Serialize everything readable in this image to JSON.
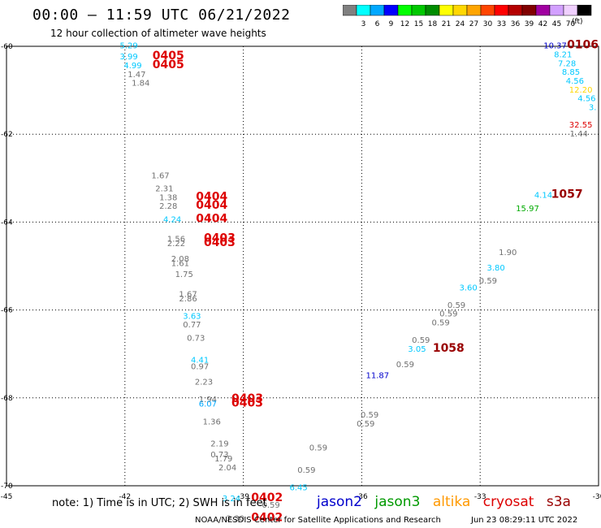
{
  "header": {
    "title": "00:00 – 11:59 UTC 06/21/2022",
    "subtitle": "12 hour collection of altimeter wave heights"
  },
  "colorbar": {
    "unit_label": "(ft)",
    "ticks": [
      "3",
      "6",
      "9",
      "12",
      "15",
      "18",
      "21",
      "24",
      "27",
      "30",
      "33",
      "36",
      "39",
      "42",
      "45",
      "70"
    ],
    "colors": [
      "#808080",
      "#00ffff",
      "#00a8ff",
      "#0000ff",
      "#00ff00",
      "#00c800",
      "#008c00",
      "#ffff00",
      "#ffd700",
      "#ffa500",
      "#ff4500",
      "#ff0000",
      "#b40000",
      "#800000",
      "#a000a0",
      "#d2a0ff",
      "#f0d0ff",
      "#000000"
    ]
  },
  "footer": {
    "note": "note: 1) Time is in UTC; 2) SWH is in feet",
    "credit": "NOAA/NESDIS Center for Satellite Applications and Research",
    "timestamp": "Jun 23 08:29:11 UTC 2022"
  },
  "legend": [
    {
      "name": "jason2",
      "color": "#0000cc"
    },
    {
      "name": "jason3",
      "color": "#009900"
    },
    {
      "name": "altika",
      "color": "#ff9900"
    },
    {
      "name": "cryosat",
      "color": "#dd0000"
    },
    {
      "name": "s3a",
      "color": "#990000"
    }
  ],
  "chart_data": {
    "type": "scatter",
    "title": "00:00 – 11:59 UTC 06/21/2022",
    "subtitle": "12 hour collection of altimeter wave heights",
    "xlim": [
      -45,
      -30
    ],
    "ylim": [
      -70,
      -60
    ],
    "x_ticks": [
      -45,
      -42,
      -39,
      -36,
      -33,
      -30
    ],
    "y_ticks": [
      -70,
      -68,
      -66,
      -64,
      -62,
      -60
    ],
    "x_tick_labels": [
      "-45",
      "-42",
      "-39",
      "-36",
      "-33",
      "-30"
    ],
    "y_tick_labels": [
      "-70",
      "-68",
      "-66",
      "-64",
      "-62",
      "-60"
    ],
    "grid": true,
    "labels": [
      {
        "text": "5.29",
        "x": -41.9,
        "y": -60.05,
        "color": "#00c8ff"
      },
      {
        "text": "3.99",
        "x": -41.9,
        "y": -60.3,
        "color": "#00c8ff"
      },
      {
        "text": "0405",
        "x": -40.9,
        "y": -60.3,
        "color": "#dd0000"
      },
      {
        "text": "4.99",
        "x": -41.8,
        "y": -60.5,
        "color": "#00c8ff"
      },
      {
        "text": "0405",
        "x": -40.9,
        "y": -60.5,
        "color": "#dd0000"
      },
      {
        "text": "1.47",
        "x": -41.7,
        "y": -60.7,
        "color": "#707070"
      },
      {
        "text": "1.84",
        "x": -41.6,
        "y": -60.9,
        "color": "#707070"
      },
      {
        "text": "1.67",
        "x": -41.1,
        "y": -63.0,
        "color": "#707070"
      },
      {
        "text": "2.31",
        "x": -41.0,
        "y": -63.3,
        "color": "#707070"
      },
      {
        "text": "1.38",
        "x": -40.9,
        "y": -63.5,
        "color": "#707070"
      },
      {
        "text": "0404",
        "x": -39.8,
        "y": -63.5,
        "color": "#dd0000"
      },
      {
        "text": "2.28",
        "x": -40.9,
        "y": -63.7,
        "color": "#707070"
      },
      {
        "text": "0404",
        "x": -39.8,
        "y": -63.7,
        "color": "#dd0000"
      },
      {
        "text": "4.24",
        "x": -40.8,
        "y": -64.0,
        "color": "#00c8ff"
      },
      {
        "text": "0404",
        "x": -39.8,
        "y": -64.0,
        "color": "#dd0000"
      },
      {
        "text": "1.56",
        "x": -40.7,
        "y": -64.45,
        "color": "#707070"
      },
      {
        "text": "0403",
        "x": -39.6,
        "y": -64.45,
        "color": "#dd0000"
      },
      {
        "text": "2.22",
        "x": -40.7,
        "y": -64.55,
        "color": "#707070"
      },
      {
        "text": "0403",
        "x": -39.6,
        "y": -64.55,
        "color": "#dd0000"
      },
      {
        "text": "2.08",
        "x": -40.6,
        "y": -64.9,
        "color": "#707070"
      },
      {
        "text": "1.61",
        "x": -40.6,
        "y": -65.0,
        "color": "#707070"
      },
      {
        "text": "1.75",
        "x": -40.5,
        "y": -65.25,
        "color": "#707070"
      },
      {
        "text": "1.67",
        "x": -40.4,
        "y": -65.7,
        "color": "#707070"
      },
      {
        "text": "2.86",
        "x": -40.4,
        "y": -65.8,
        "color": "#707070"
      },
      {
        "text": "3.63",
        "x": -40.3,
        "y": -66.2,
        "color": "#00c8ff"
      },
      {
        "text": "0.77",
        "x": -40.3,
        "y": -66.4,
        "color": "#707070"
      },
      {
        "text": "0.73",
        "x": -40.2,
        "y": -66.7,
        "color": "#707070"
      },
      {
        "text": "4.41",
        "x": -40.1,
        "y": -67.2,
        "color": "#00c8ff"
      },
      {
        "text": "0.97",
        "x": -40.1,
        "y": -67.35,
        "color": "#707070"
      },
      {
        "text": "2.23",
        "x": -40.0,
        "y": -67.7,
        "color": "#707070"
      },
      {
        "text": "1.94",
        "x": -39.9,
        "y": -68.1,
        "color": "#707070"
      },
      {
        "text": "0403",
        "x": -38.9,
        "y": -68.1,
        "color": "#dd0000"
      },
      {
        "text": "6.07",
        "x": -39.9,
        "y": -68.2,
        "color": "#00a8ff"
      },
      {
        "text": "0403",
        "x": -38.9,
        "y": -68.2,
        "color": "#dd0000"
      },
      {
        "text": "1.36",
        "x": -39.8,
        "y": -68.6,
        "color": "#707070"
      },
      {
        "text": "2.19",
        "x": -39.6,
        "y": -69.1,
        "color": "#707070"
      },
      {
        "text": "0.73",
        "x": -39.6,
        "y": -69.35,
        "color": "#707070"
      },
      {
        "text": "1.79",
        "x": -39.5,
        "y": -69.45,
        "color": "#707070"
      },
      {
        "text": "2.04",
        "x": -39.4,
        "y": -69.65,
        "color": "#707070"
      },
      {
        "text": "3.24",
        "x": -39.3,
        "y": -70.35,
        "color": "#00c8ff"
      },
      {
        "text": "0402",
        "x": -38.4,
        "y": -70.35,
        "color": "#dd0000"
      },
      {
        "text": "0.59",
        "x": -38.3,
        "y": -70.5,
        "color": "#707070"
      },
      {
        "text": "2.30",
        "x": -39.2,
        "y": -70.8,
        "color": "#707070"
      },
      {
        "text": "0402",
        "x": -38.4,
        "y": -70.8,
        "color": "#dd0000"
      },
      {
        "text": "0.59",
        "x": -37.1,
        "y": -69.2,
        "color": "#707070"
      },
      {
        "text": "0.59",
        "x": -37.4,
        "y": -69.7,
        "color": "#707070"
      },
      {
        "text": "6.45",
        "x": -37.6,
        "y": -70.1,
        "color": "#00c8ff"
      },
      {
        "text": "0.59",
        "x": -35.8,
        "y": -68.45,
        "color": "#707070"
      },
      {
        "text": "0.59",
        "x": -35.9,
        "y": -68.65,
        "color": "#707070"
      },
      {
        "text": "11.87",
        "x": -35.6,
        "y": -67.55,
        "color": "#0000cc"
      },
      {
        "text": "0.59",
        "x": -34.9,
        "y": -67.3,
        "color": "#707070"
      },
      {
        "text": "0.59",
        "x": -34.5,
        "y": -66.75,
        "color": "#707070"
      },
      {
        "text": "3.05",
        "x": -34.6,
        "y": -66.95,
        "color": "#00c8ff"
      },
      {
        "text": "1058",
        "x": -33.8,
        "y": -66.95,
        "color": "#990000"
      },
      {
        "text": "0.59",
        "x": -34.0,
        "y": -66.35,
        "color": "#707070"
      },
      {
        "text": "0.59",
        "x": -33.8,
        "y": -66.15,
        "color": "#707070"
      },
      {
        "text": "0.59",
        "x": -33.6,
        "y": -65.95,
        "color": "#707070"
      },
      {
        "text": "3.60",
        "x": -33.3,
        "y": -65.55,
        "color": "#00c8ff"
      },
      {
        "text": "0.59",
        "x": -32.8,
        "y": -65.4,
        "color": "#707070"
      },
      {
        "text": "3.80",
        "x": -32.6,
        "y": -65.1,
        "color": "#00c8ff"
      },
      {
        "text": "1.90",
        "x": -32.3,
        "y": -64.75,
        "color": "#707070"
      },
      {
        "text": "15.97",
        "x": -31.8,
        "y": -63.75,
        "color": "#00aa00"
      },
      {
        "text": "4.14",
        "x": -31.4,
        "y": -63.45,
        "color": "#00c8ff"
      },
      {
        "text": "1057",
        "x": -30.8,
        "y": -63.45,
        "color": "#990000"
      },
      {
        "text": "10.37",
        "x": -31.1,
        "y": -60.05,
        "color": "#0000cc"
      },
      {
        "text": "0106",
        "x": -30.4,
        "y": -60.05,
        "color": "#990000"
      },
      {
        "text": "8.21",
        "x": -30.9,
        "y": -60.25,
        "color": "#00c8ff"
      },
      {
        "text": "7.28",
        "x": -30.8,
        "y": -60.45,
        "color": "#00c8ff"
      },
      {
        "text": "8.85",
        "x": -30.7,
        "y": -60.65,
        "color": "#00c8ff"
      },
      {
        "text": "4.56",
        "x": -30.6,
        "y": -60.85,
        "color": "#00c8ff"
      },
      {
        "text": "12.20",
        "x": -30.45,
        "y": -61.05,
        "color": "#ffd700"
      },
      {
        "text": "4.56",
        "x": -30.3,
        "y": -61.25,
        "color": "#00c8ff"
      },
      {
        "text": "3.",
        "x": -30.15,
        "y": -61.45,
        "color": "#00c8ff"
      },
      {
        "text": "32.55",
        "x": -30.45,
        "y": -61.85,
        "color": "#dd0000"
      },
      {
        "text": "1.44",
        "x": -30.5,
        "y": -62.05,
        "color": "#707070"
      }
    ]
  }
}
